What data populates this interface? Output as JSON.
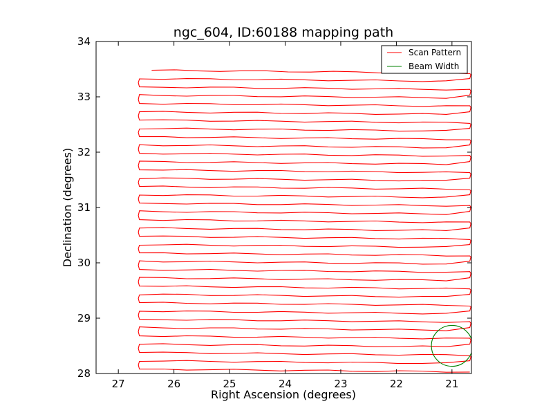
{
  "chart_data": {
    "type": "line",
    "title": "ngc_604, ID:60188 mapping path",
    "xlabel": "Right Ascension (degrees)",
    "ylabel": "Declination (degrees)",
    "xlim": [
      27.4,
      20.65
    ],
    "ylim": [
      28,
      34
    ],
    "x_ticks": [
      27,
      26,
      25,
      24,
      23,
      22,
      21
    ],
    "y_ticks": [
      28,
      29,
      30,
      31,
      32,
      33,
      34
    ],
    "legend_position": "upper right",
    "grid": false,
    "colors": {
      "scan": "#ff0000",
      "beam": "#008000"
    },
    "series": [
      {
        "name": "Scan Pattern",
        "kind": "raster",
        "ra_left": 26.62,
        "ra_right": 20.68,
        "ra_start": 26.4,
        "dec_start": 33.48,
        "dec_end": 28.08,
        "row_spacing": 0.15,
        "row_slope": -0.025
      },
      {
        "name": "Beam Width",
        "kind": "circle",
        "center": [
          21.0,
          28.5
        ],
        "radius_deg": 0.37
      }
    ]
  }
}
